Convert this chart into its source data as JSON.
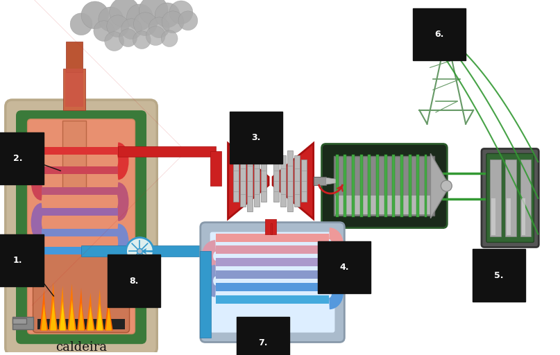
{
  "bg_color": "#ffffff",
  "label_caldeira": "caldeira",
  "boiler_outer_color": "#c8b89a",
  "boiler_green": "#3a7a3a",
  "boiler_inner_top": "#e89070",
  "boiler_inner_bot": "#d07050",
  "chimney_color": "#cc7055",
  "chimney_dark": "#aa5535",
  "smoke_gray1": "#aaaaaa",
  "smoke_gray2": "#999999",
  "pipe_red": "#cc2020",
  "pipe_red_dark": "#aa1010",
  "pipe_blue": "#3399cc",
  "pipe_blue_dark": "#2277aa",
  "coil_colors": [
    "#dd3333",
    "#cc4455",
    "#bb5577",
    "#9966aa",
    "#7788cc",
    "#4499dd"
  ],
  "fire_orange": "#ff8800",
  "fire_yellow": "#ffcc00",
  "fire_dark": "#cc4400",
  "turbine_red": "#cc2020",
  "turbine_gray_dark": "#555555",
  "turbine_gray_light": "#cccccc",
  "generator_bg": "#1a2a1a",
  "generator_border": "#2a5a2a",
  "generator_green": "#44aa44",
  "generator_cyl": "#aaaaaa",
  "generator_shaft": "#888888",
  "transformer_bg": "#444444",
  "transformer_border": "#333333",
  "transformer_cyl": "#999999",
  "tower_color": "#669966",
  "wire_green": "#339933",
  "pump_color": "#aaccee",
  "pump_border": "#3399cc",
  "cond_bg": "#b8ccdd",
  "cond_border": "#8899bb",
  "cond_colors": [
    "#ee9999",
    "#dd99aa",
    "#aa99cc",
    "#8899cc",
    "#5599dd",
    "#44aadd"
  ],
  "label_bg": "#111111",
  "label_fg": "#ffffff",
  "arrow_red": "#cc2020",
  "arrow_blue": "#3399cc",
  "fuel_gray": "#777777"
}
